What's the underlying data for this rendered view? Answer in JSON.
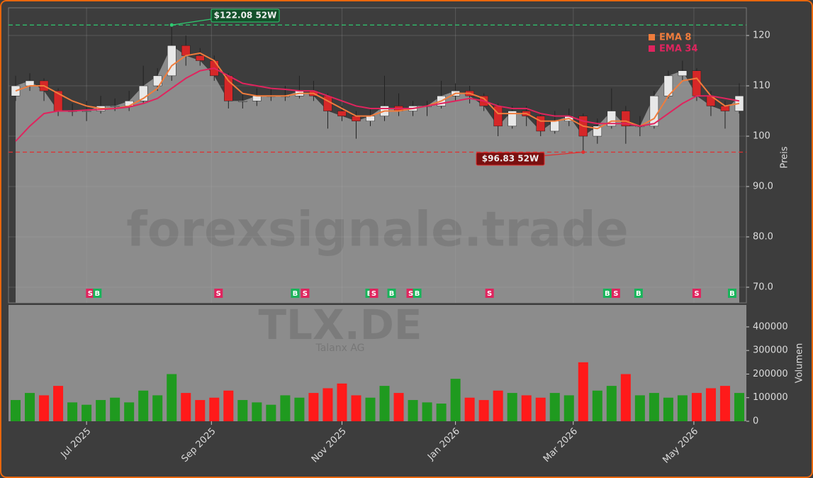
{
  "chart_data": [
    {
      "type": "candlestick",
      "x": [
        0,
        1,
        2,
        3,
        4,
        5,
        6,
        7,
        8,
        9,
        10,
        11,
        12,
        13,
        14,
        15,
        16,
        17,
        18,
        19,
        20,
        21,
        22,
        23,
        24,
        25,
        26,
        27,
        28,
        29,
        30,
        31,
        32,
        33,
        34,
        35,
        36,
        37,
        38,
        39,
        40,
        41,
        42,
        43,
        44,
        45,
        46,
        47,
        48,
        49,
        50,
        51
      ],
      "open": [
        108,
        110,
        111,
        109,
        105,
        105,
        105,
        106,
        106,
        107,
        110,
        112,
        118,
        116,
        115,
        112,
        107,
        107,
        108,
        108,
        108,
        109,
        108,
        105,
        104,
        103,
        104,
        106,
        105,
        106,
        106,
        108,
        109,
        108,
        106,
        102,
        105,
        104,
        101,
        103,
        104,
        100,
        102,
        105,
        102,
        102,
        108,
        112,
        113,
        108,
        106,
        105
      ],
      "high": [
        112,
        112.5,
        111.5,
        109.5,
        106.5,
        107,
        108,
        107.5,
        109,
        114,
        113.5,
        122.08,
        120,
        117.5,
        116,
        112.5,
        108.5,
        109.5,
        109.5,
        110,
        112,
        111,
        108.5,
        106,
        105,
        105.5,
        112,
        108.5,
        107,
        107,
        111,
        110.5,
        110,
        108.5,
        106.5,
        106,
        106,
        104.5,
        105,
        105.5,
        104.5,
        103.5,
        109.5,
        106,
        104,
        109,
        113,
        115,
        113.5,
        109,
        107,
        110.5
      ],
      "low": [
        107,
        109,
        107,
        104,
        104,
        103,
        104.5,
        105,
        105,
        106.5,
        109,
        111,
        114,
        114,
        111,
        105.5,
        105.5,
        106,
        107,
        107,
        107.5,
        107,
        101.5,
        103,
        99.5,
        102,
        103,
        104,
        104,
        104,
        105.5,
        107,
        106.5,
        105,
        100,
        101.5,
        102,
        100,
        100.5,
        102,
        96.83,
        98.5,
        101.5,
        98.5,
        100,
        101.5,
        107.5,
        111,
        107,
        104,
        101.5,
        104.5
      ],
      "close": [
        110,
        111,
        109,
        105,
        105,
        105,
        106,
        106,
        107,
        110,
        112,
        118,
        116,
        115,
        112,
        107,
        107,
        108,
        108,
        108,
        109,
        108,
        105,
        104,
        103,
        104,
        106,
        105,
        106,
        106,
        108,
        109,
        108,
        106,
        102,
        105,
        104,
        101,
        103,
        104,
        100,
        102,
        105,
        102,
        102,
        108,
        112,
        113,
        108,
        106,
        105,
        108
      ],
      "up_color": "#e8e8e8",
      "down_color": "#d62728",
      "area_color": "#8c8c8c",
      "series": [
        {
          "name": "EMA 8",
          "color": "#f07c3c",
          "values": [
            109,
            110,
            110,
            108.5,
            107,
            106,
            105.5,
            105.5,
            106,
            107.5,
            109.5,
            114,
            116,
            116.5,
            115,
            111,
            108.5,
            108,
            108,
            108,
            108.5,
            108.5,
            107,
            105.5,
            104,
            104,
            105,
            105,
            105.5,
            106,
            107,
            108.5,
            108.5,
            107.5,
            104.5,
            104.5,
            104.5,
            103,
            103,
            103.5,
            102,
            101.5,
            103,
            103,
            102,
            103.5,
            108,
            111,
            111.5,
            108,
            106,
            106.5
          ]
        },
        {
          "name": "EMA 34",
          "color": "#e0245e",
          "values": [
            99,
            102,
            104.5,
            105,
            105,
            105.2,
            105.3,
            105.5,
            105.8,
            106.5,
            107.5,
            109.5,
            111.5,
            113,
            113.5,
            112,
            110.5,
            110,
            109.5,
            109.3,
            109,
            109,
            108,
            107,
            106,
            105.5,
            105.5,
            105.5,
            105.5,
            106,
            106.5,
            107,
            107.5,
            107,
            106,
            105.5,
            105.5,
            104.5,
            104,
            104,
            103,
            102.5,
            102.5,
            102.5,
            102,
            102.5,
            104.5,
            106.5,
            108,
            108,
            107.5,
            107
          ]
        }
      ],
      "annotations": [
        {
          "text": "$122.08 52W",
          "value": 122.08,
          "color": "#2ecc71"
        },
        {
          "text": "$96.83 52W",
          "value": 96.83,
          "color": "#e03030"
        }
      ],
      "signals": [
        {
          "x": 5.26,
          "label": "S"
        },
        {
          "x": 5.76,
          "label": "B"
        },
        {
          "x": 14.3,
          "label": "S"
        },
        {
          "x": 19.7,
          "label": "B"
        },
        {
          "x": 20.4,
          "label": "S"
        },
        {
          "x": 24.95,
          "label": "B"
        },
        {
          "x": 25.25,
          "label": "S"
        },
        {
          "x": 26.5,
          "label": "B"
        },
        {
          "x": 27.85,
          "label": "S"
        },
        {
          "x": 28.3,
          "label": "B"
        },
        {
          "x": 33.4,
          "label": "S"
        },
        {
          "x": 41.7,
          "label": "B"
        },
        {
          "x": 42.3,
          "label": "S"
        },
        {
          "x": 43.9,
          "label": "B"
        },
        {
          "x": 48,
          "label": "S"
        },
        {
          "x": 50.5,
          "label": "B"
        }
      ],
      "watermark": "forexsignale.trade",
      "ylabel": "Preis",
      "xlim": [
        -0.5,
        51.5
      ],
      "ylim": [
        66.9,
        125.5
      ],
      "yticks": [
        {
          "value": 70,
          "label": "70.0"
        },
        {
          "value": 80,
          "label": "80.0"
        },
        {
          "value": 90,
          "label": "90.0"
        },
        {
          "value": 100,
          "label": "100"
        },
        {
          "value": 110,
          "label": "110"
        },
        {
          "value": 120,
          "label": "120"
        }
      ],
      "xticks": [
        {
          "value": 5,
          "label": "Jul 2025"
        },
        {
          "value": 13.8,
          "label": "Sep 2025"
        },
        {
          "value": 23,
          "label": "Nov 2025"
        },
        {
          "value": 31,
          "label": "Jan 2026"
        },
        {
          "value": 39.3,
          "label": "Mar 2026"
        },
        {
          "value": 47.8,
          "label": "May 2026"
        }
      ],
      "grid": true
    },
    {
      "type": "bar",
      "values": [
        90000,
        120000,
        110000,
        150000,
        80000,
        70000,
        90000,
        100000,
        80000,
        130000,
        110000,
        200000,
        120000,
        90000,
        100000,
        130000,
        90000,
        80000,
        70000,
        110000,
        100000,
        120000,
        140000,
        160000,
        110000,
        100000,
        150000,
        120000,
        90000,
        80000,
        75000,
        180000,
        100000,
        90000,
        130000,
        120000,
        110000,
        100000,
        120000,
        110000,
        250000,
        130000,
        150000,
        200000,
        110000,
        120000,
        100000,
        110000,
        120000,
        140000,
        150000,
        120000
      ],
      "up_color": "#1f9a1f",
      "down_color": "#ff1a1a",
      "watermark": "TLX.DE",
      "subtitle": "Talanx AG",
      "ylabel": "Volumen",
      "ylim": [
        0,
        493000
      ],
      "yticks": [
        0,
        100000,
        200000,
        300000,
        400000
      ]
    }
  ]
}
